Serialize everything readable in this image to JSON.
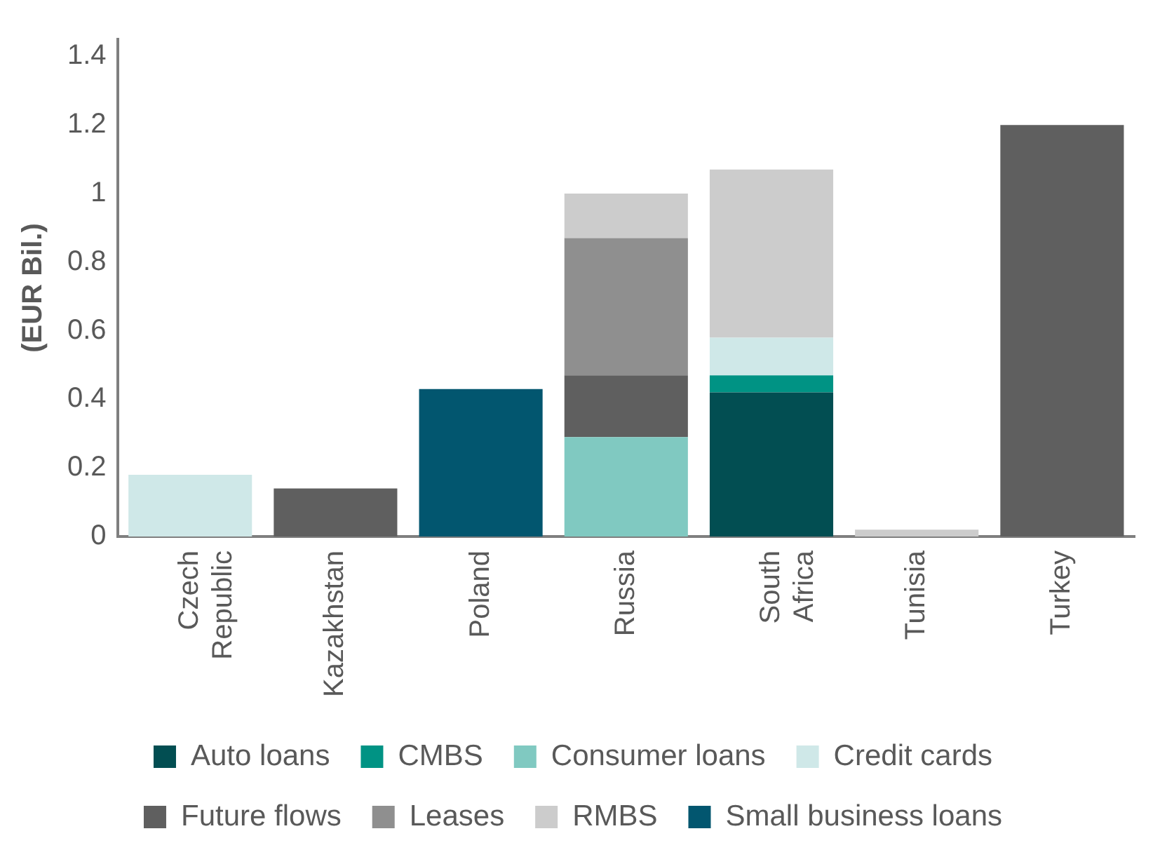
{
  "chart_data": {
    "type": "bar",
    "stacked": true,
    "ylabel": "(EUR Bil.)",
    "categories": [
      "Czech Republic",
      "Kazakhstan",
      "Poland",
      "Russia",
      "South Africa",
      "Tunisia",
      "Turkey"
    ],
    "series": [
      {
        "name": "Auto loans",
        "color": "#024e52",
        "values": [
          null,
          null,
          null,
          null,
          0.42,
          null,
          null
        ]
      },
      {
        "name": "CMBS",
        "color": "#009384",
        "values": [
          null,
          null,
          null,
          null,
          0.05,
          null,
          null
        ]
      },
      {
        "name": "Consumer loans",
        "color": "#80c9c1",
        "values": [
          null,
          null,
          null,
          0.29,
          null,
          null,
          null
        ]
      },
      {
        "name": "Credit cards",
        "color": "#cfe8e8",
        "values": [
          0.18,
          null,
          null,
          null,
          0.11,
          null,
          null
        ]
      },
      {
        "name": "Future flows",
        "color": "#5f5f5f",
        "values": [
          null,
          0.14,
          null,
          0.18,
          null,
          null,
          1.2
        ]
      },
      {
        "name": "Leases",
        "color": "#8f8f8f",
        "values": [
          null,
          null,
          null,
          0.4,
          null,
          null,
          null
        ]
      },
      {
        "name": "RMBS",
        "color": "#cccccc",
        "values": [
          null,
          null,
          null,
          0.13,
          0.49,
          0.02,
          null
        ]
      },
      {
        "name": "Small business loans",
        "color": "#02566f",
        "values": [
          null,
          null,
          0.43,
          null,
          null,
          null,
          null
        ]
      }
    ],
    "ylim": [
      0,
      1.45
    ],
    "yticks": [
      0,
      0.2,
      0.4,
      0.6,
      0.8,
      1,
      1.2,
      1.4
    ],
    "grid": false,
    "legend": "bottom"
  }
}
